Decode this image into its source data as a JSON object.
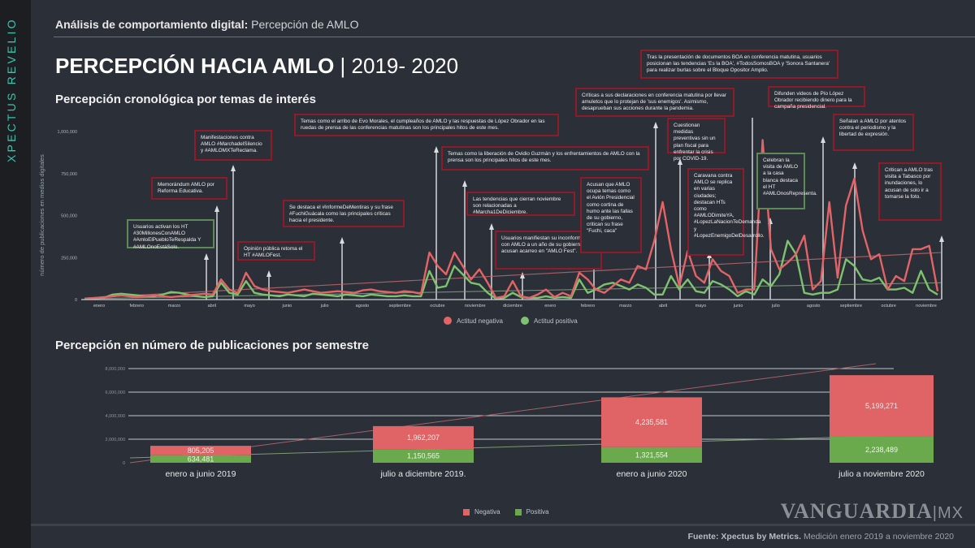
{
  "sidebar": {
    "brand": "XPECTUS REVELIO"
  },
  "header": {
    "breadcrumb_bold": "Análisis de comportamiento digital:",
    "breadcrumb_light": "Percepción de AMLO",
    "title_bold": "PERCEPCIÓN HACIA AMLO",
    "title_light": "| 2019- 2020"
  },
  "section1": {
    "title": "Percepción cronológica por temas de interés"
  },
  "section2": {
    "title": "Percepción en número de publicaciones por semestre"
  },
  "colors": {
    "negative": "#e36466",
    "positive": "#7dc26f",
    "bar_negative": "#e06466",
    "bar_positive": "#6aaa4c",
    "brand": "#3fc1b0",
    "note_border": "#8e1b27",
    "note_border_green": "#5c8a57"
  },
  "chart_data": [
    {
      "type": "line",
      "title": "Percepción cronológica por temas de interés",
      "ylabel": "número de publicaciones en medios digitales",
      "yticks": [
        "0",
        "250,000",
        "500,000",
        "750,000",
        "1,000,000"
      ],
      "ylim": [
        0,
        1000000
      ],
      "xticks": [
        "enero",
        "febrero",
        "marzo",
        "abril",
        "mayo",
        "junio",
        "julio",
        "agosto",
        "septiembre",
        "octubre",
        "noviembre",
        "diciembre",
        "enero",
        "febrero",
        "marzo",
        "abril",
        "mayo",
        "junio",
        "julio",
        "agosto",
        "septiembre",
        "octubre",
        "noviembre"
      ],
      "legend": [
        "Actitud negativa",
        "Actitud positiva"
      ],
      "series": [
        {
          "name": "Actitud negativa",
          "values": [
            5000,
            10000,
            15000,
            20000,
            25000,
            20000,
            15000,
            20000,
            25000,
            20000,
            15000,
            20000,
            25000,
            30000,
            35000,
            30000,
            120000,
            60000,
            40000,
            160000,
            80000,
            60000,
            50000,
            45000,
            40000,
            50000,
            60000,
            50000,
            40000,
            45000,
            50000,
            45000,
            40000,
            55000,
            60000,
            50000,
            45000,
            40000,
            50000,
            45000,
            35000,
            280000,
            200000,
            150000,
            280000,
            200000,
            120000,
            180000,
            100000,
            10000,
            20000,
            110000,
            20000,
            10000,
            30000,
            60000,
            15000,
            40000,
            20000,
            160000,
            120000,
            60000,
            40000,
            80000,
            120000,
            100000,
            200000,
            180000,
            350000,
            580000,
            300000,
            80000,
            290000,
            140000,
            100000,
            240000,
            170000,
            140000,
            40000,
            60000,
            60000,
            950000,
            300000,
            180000,
            220000,
            270000,
            380000,
            60000,
            110000,
            580000,
            130000,
            560000,
            720000,
            410000,
            240000,
            270000,
            60000,
            140000,
            110000,
            300000,
            300000,
            320000,
            50000
          ]
        },
        {
          "name": "Actitud positiva",
          "values": [
            5000,
            8000,
            12000,
            30000,
            35000,
            30000,
            25000,
            20000,
            20000,
            30000,
            45000,
            40000,
            30000,
            20000,
            15000,
            20000,
            100000,
            40000,
            30000,
            110000,
            40000,
            30000,
            25000,
            20000,
            30000,
            25000,
            20000,
            35000,
            30000,
            25000,
            20000,
            30000,
            25000,
            20000,
            30000,
            25000,
            20000,
            20000,
            25000,
            20000,
            20000,
            170000,
            70000,
            80000,
            200000,
            150000,
            100000,
            90000,
            40000,
            5000,
            10000,
            40000,
            15000,
            10000,
            10000,
            20000,
            10000,
            15000,
            10000,
            120000,
            40000,
            60000,
            90000,
            100000,
            80000,
            60000,
            90000,
            70000,
            30000,
            30000,
            140000,
            60000,
            120000,
            50000,
            40000,
            110000,
            90000,
            60000,
            20000,
            50000,
            30000,
            120000,
            80000,
            150000,
            350000,
            270000,
            40000,
            30000,
            40000,
            40000,
            60000,
            240000,
            200000,
            120000,
            110000,
            130000,
            60000,
            60000,
            70000,
            40000,
            170000,
            60000,
            30000
          ]
        }
      ],
      "annotations": [
        {
          "text": "Usuarios activan los HT #30MillonesConAMLO #AmloElPuebloTeRespalda Y #AMLOnoEstáSolo.",
          "sentiment": "positiva",
          "month": "abril 2019"
        },
        {
          "text": "Memorándum AMLO por Reforma Educativa.",
          "sentiment": "negativa",
          "month": "abril 2019"
        },
        {
          "text": "Manifestaciones contra AMLO #MarchadelSilencio y #AMLOMXTeReclama.",
          "sentiment": "negativa",
          "month": "mayo 2019"
        },
        {
          "text": "Opinión pública retoma el HT #AMLOFest.",
          "sentiment": "negativa",
          "month": "junio 2019"
        },
        {
          "text": "Se destaca el #InformeDeMentiras y su frase #FuchiGuácala como las principales críticas hacia el presidente.",
          "sentiment": "negativa",
          "month": "agosto 2019"
        },
        {
          "text": "Temas como el arribo de Evo Morales, el cumpleaños de AMLO y las respuestas de López Obrador en las ruedas de prensa de las conferencias matutinas son los principales hitos de este mes.",
          "sentiment": "negativa",
          "month": "octubre 2019"
        },
        {
          "text": "Temas como la liberación de Ovidio Guzmán y los enfrentamientos de AMLO con la prensa son los principales hitos de este mes.",
          "sentiment": "negativa",
          "month": "octubre 2019"
        },
        {
          "text": "Las tendencias que cierran noviembre son relacionadas a #Marcha1DeDiciembre.",
          "sentiment": "negativa",
          "month": "noviembre 2019"
        },
        {
          "text": "Usuarios manifiestan su inconformidad con AMLO a un año de su gobierno, acusan acarreo en \"AMLO Fest\".",
          "sentiment": "negativa",
          "month": "diciembre 2019"
        },
        {
          "text": "Acusan que AMLO ocupa temas como el Avión Presidencial como cortina de humo ante las fallas de su gobierno, critican su frase \"Fuchi, caca\"",
          "sentiment": "negativa",
          "month": "enero 2020"
        },
        {
          "text": "Críticas a sus declaraciones en conferencia matutina por llevar amuletos que lo protejan de 'sus enemigos'. Asimismo, desaprueban sus acciones durante la pandemia.",
          "sentiment": "negativa",
          "month": "marzo 2020"
        },
        {
          "text": "Cuestionan medidas preventivas sin un plan fiscal para enfrentar la crisis por COVID-19.",
          "sentiment": "negativa",
          "month": "abril 2020"
        },
        {
          "text": "Caravana contra AMLO se replica en varias ciudades; destacan HTs como #AMLODimiteYA, #LopezLaNacionTeDemanda y #LopezEnemigoDelDesarrollo.",
          "sentiment": "negativa",
          "month": "mayo 2020"
        },
        {
          "text": "Tras la presentación de documentos BOA en conferencia matutina, usuarios posicionan las tendencias 'Es la BOA', #TodosSomosBOA y 'Sonora Santanera' para realizar burlas sobre el Bloque Opositor Amplio.",
          "sentiment": "negativa",
          "month": "junio 2020"
        },
        {
          "text": "Celebran la visita de AMLO a la casa blanca destaca el HT #AMLOnosRepresenta.",
          "sentiment": "positiva",
          "month": "julio 2020"
        },
        {
          "text": "Difunden videos de Pío López Obrador recibiendo dinero para la campaña presidencial.",
          "sentiment": "negativa",
          "month": "agosto 2020"
        },
        {
          "text": "Señalan a AMLO por atentos contra el periodismo y la libertad de expresión.",
          "sentiment": "negativa",
          "month": "septiembre 2020"
        },
        {
          "text": "Critican a AMLO tras visita a Tabasco por inundaciones, lo acusan de solo ir a tomarse la foto.",
          "sentiment": "negativa",
          "month": "noviembre 2020"
        }
      ]
    },
    {
      "type": "bar",
      "stacked": true,
      "title": "Percepción en número de publicaciones por semestre",
      "categories": [
        "enero a junio 2019",
        "julio a diciembre 2019.",
        "enero a junio 2020",
        "julio a noviembre 2020"
      ],
      "yticks": [
        "0",
        "2,000,000",
        "4,000,000",
        "6,000,000",
        "8,000,000"
      ],
      "ylim": [
        0,
        8000000
      ],
      "legend": [
        "Negativa",
        "Positiva"
      ],
      "series": [
        {
          "name": "Negativa",
          "values": [
            805205,
            1962207,
            4235581,
            5199271
          ],
          "labels": [
            "805,205",
            "1,962,207",
            "4,235,581",
            "5,199,271"
          ]
        },
        {
          "name": "Positiva",
          "values": [
            634481,
            1150565,
            1321554,
            2238489
          ],
          "labels": [
            "634,481",
            "1,150,565",
            "1,321,554",
            "2,238,489"
          ]
        }
      ]
    }
  ],
  "footer": {
    "logo_main": "VANGUARDIA",
    "logo_suffix": "|MX",
    "source_bold": "Fuente: Xpectus by Metrics.",
    "source_light": "Medición enero 2019 a noviembre 2020"
  }
}
